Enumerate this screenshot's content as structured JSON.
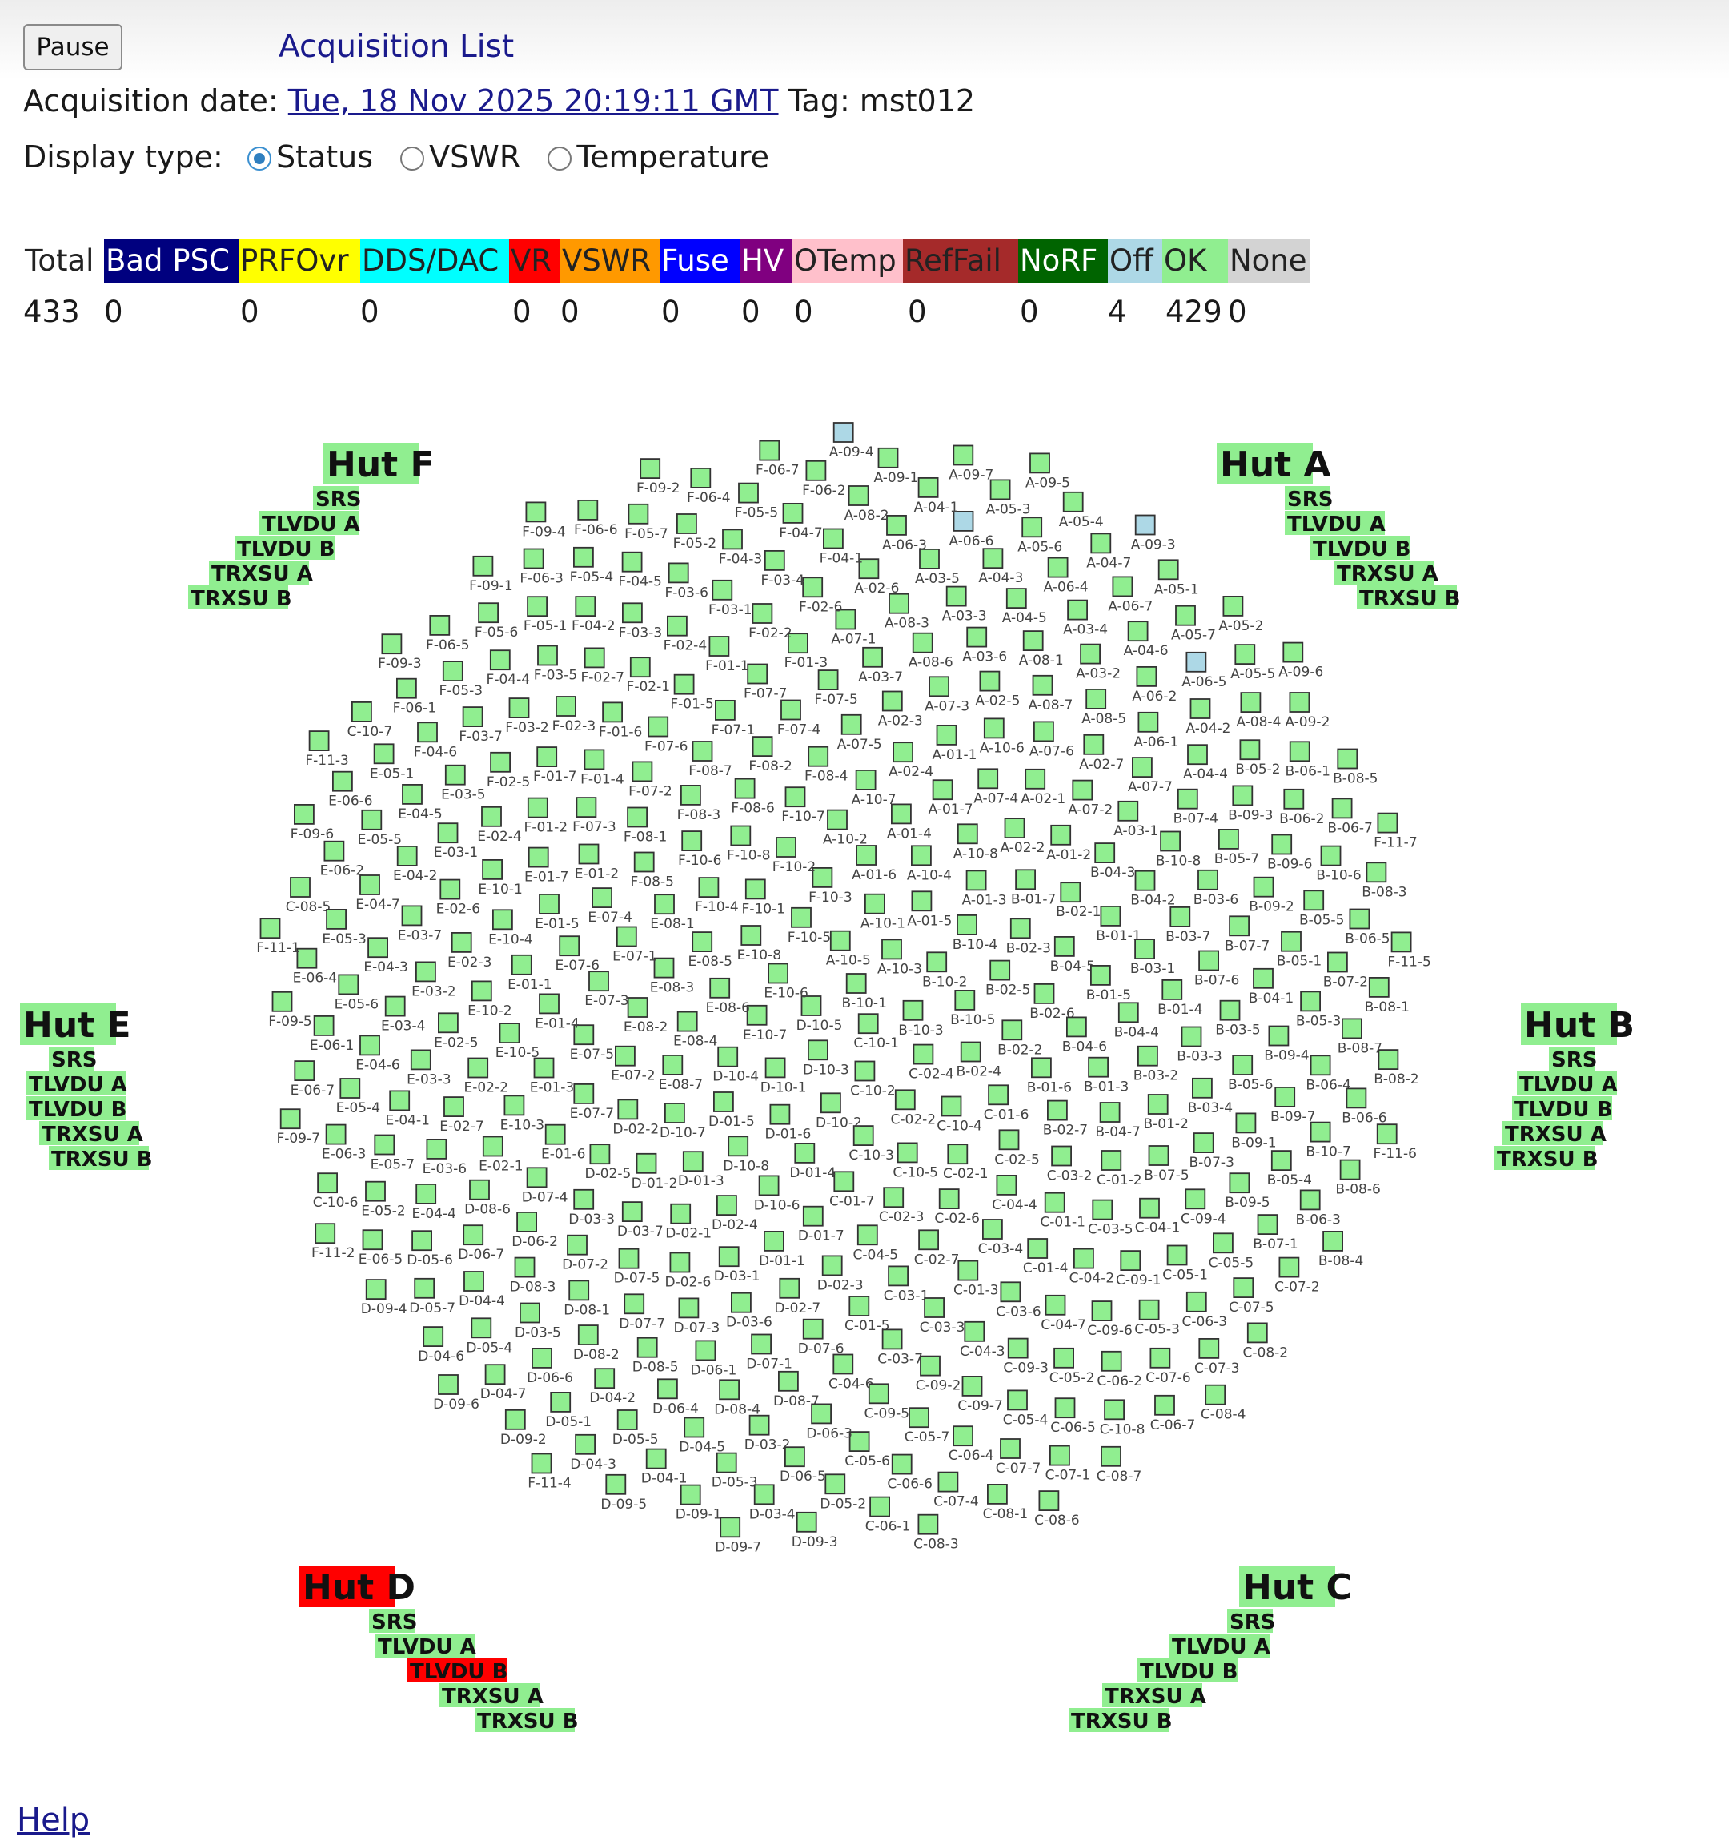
{
  "header": {
    "pause_label": "Pause",
    "acquisition_list_label": "Acquisition List",
    "acq_date_label": "Acquisition date:",
    "acq_date_value": "Tue, 18 Nov 2025 20:19:11 GMT",
    "tag_label": "Tag:",
    "tag_value": "mst012",
    "display_type_label": "Display type:",
    "display_options": [
      "Status",
      "VSWR",
      "Temperature"
    ],
    "display_selected": "Status"
  },
  "legend": {
    "total_label": "Total",
    "total_count": "433",
    "categories": [
      {
        "label": "Bad PSC",
        "count": "0",
        "bg": "#00007f",
        "fg": "#ffffff"
      },
      {
        "label": "PRFOvr",
        "count": "0",
        "bg": "#ffff00",
        "fg": "#222222"
      },
      {
        "label": "DDS/DAC",
        "count": "0",
        "bg": "#00ffff",
        "fg": "#222222"
      },
      {
        "label": "VR",
        "count": "0",
        "bg": "#ff0000",
        "fg": "#222222"
      },
      {
        "label": "VSWR",
        "count": "0",
        "bg": "#ff9900",
        "fg": "#222222"
      },
      {
        "label": "Fuse",
        "count": "0",
        "bg": "#0000ff",
        "fg": "#ffffff"
      },
      {
        "label": "HV",
        "count": "0",
        "bg": "#800080",
        "fg": "#ffffff"
      },
      {
        "label": "OTemp",
        "count": "0",
        "bg": "#ffc0cb",
        "fg": "#222222"
      },
      {
        "label": "RefFail",
        "count": "0",
        "bg": "#a52a2a",
        "fg": "#222222"
      },
      {
        "label": "NoRF",
        "count": "0",
        "bg": "#006400",
        "fg": "#ffffff"
      },
      {
        "label": "Off",
        "count": "4",
        "bg": "#add8e6",
        "fg": "#222222"
      },
      {
        "label": "OK",
        "count": "429",
        "bg": "#90ee90",
        "fg": "#222222"
      },
      {
        "label": "None",
        "count": "0",
        "bg": "#d3d3d3",
        "fg": "#222222"
      }
    ]
  },
  "huts": [
    {
      "name": "Hut F",
      "status": "ok",
      "lines": [
        "SRS",
        "TLVDU A",
        "TLVDU B",
        "TRXSU A",
        "TRXSU B"
      ],
      "failed_lines": []
    },
    {
      "name": "Hut A",
      "status": "ok",
      "lines": [
        "SRS",
        "TLVDU A",
        "TLVDU B",
        "TRXSU A",
        "TRXSU B"
      ],
      "failed_lines": []
    },
    {
      "name": "Hut E",
      "status": "ok",
      "lines": [
        "SRS",
        "TLVDU A",
        "TLVDU B",
        "TRXSU A",
        "TRXSU B"
      ],
      "failed_lines": []
    },
    {
      "name": "Hut B",
      "status": "ok",
      "lines": [
        "SRS",
        "TLVDU A",
        "TLVDU B",
        "TRXSU A",
        "TRXSU B"
      ],
      "failed_lines": []
    },
    {
      "name": "Hut D",
      "status": "fail",
      "lines": [
        "SRS",
        "TLVDU A",
        "TLVDU B",
        "TRXSU A",
        "TRXSU B"
      ],
      "failed_lines": [
        "TLVDU B"
      ]
    },
    {
      "name": "Hut C",
      "status": "ok",
      "lines": [
        "SRS",
        "TLVDU A",
        "TLVDU B",
        "TRXSU A",
        "TRXSU B"
      ],
      "failed_lines": []
    }
  ],
  "status_colors": {
    "ok": "#90ee90",
    "off": "#add8e6",
    "fail": "#ff0000"
  },
  "nodes": [
    "A-10-5",
    "A-10-3",
    "A-10-1",
    "A-01-5",
    "A-01-6",
    "A-10-4",
    "A-10-2",
    "A-01-3",
    "A-01-4",
    "A-10-8",
    "A-10-7",
    "A-01-7",
    "A-02-2",
    "A-02-4",
    "A-07-4",
    "A-07-5",
    "A-01-2",
    "A-01-1",
    "A-02-1",
    "A-02-3",
    "A-10-6",
    "A-07-2",
    "A-07-3",
    "A-07-6",
    "A-03-7",
    "A-03-1",
    "A-02-5",
    "A-02-7",
    "A-08-6",
    "A-08-7",
    "A-07-1",
    "A-07-7",
    "A-03-6",
    "A-08-5",
    "A-08-3",
    "A-08-1",
    "A-06-1",
    "A-03-3",
    "A-03-2",
    "A-02-6",
    "A-04-4",
    "A-04-5",
    "A-06-2",
    "A-03-5",
    "A-03-4",
    "A-04-2",
    "A-04-3",
    "A-04-6",
    "A-06-3",
    "A-06-4",
    "A-06-5",
    "A-06-6",
    "A-06-7",
    "A-08-2",
    "A-08-4",
    "A-05-6",
    "A-05-7",
    "A-04-1",
    "A-04-7",
    "A-05-5",
    "A-05-3",
    "A-05-1",
    "A-09-1",
    "A-09-2",
    "A-05-4",
    "A-05-2",
    "A-09-7",
    "A-09-3",
    "A-09-4",
    "A-09-6",
    "A-09-5",
    "B-10-1",
    "B-10-3",
    "B-10-2",
    "B-10-5",
    "B-10-4",
    "B-02-4",
    "B-02-5",
    "B-02-2",
    "B-02-3",
    "B-02-6",
    "B-01-7",
    "B-01-6",
    "B-04-5",
    "B-04-6",
    "B-02-1",
    "B-02-7",
    "B-01-5",
    "B-01-3",
    "B-01-1",
    "B-04-4",
    "B-04-3",
    "B-04-7",
    "B-03-1",
    "B-03-2",
    "B-04-2",
    "B-01-4",
    "B-01-2",
    "B-03-7",
    "B-03-3",
    "B-10-8",
    "B-07-5",
    "B-07-6",
    "B-03-4",
    "B-03-6",
    "B-03-5",
    "B-07-4",
    "B-07-3",
    "B-07-7",
    "B-05-6",
    "B-05-7",
    "B-04-1",
    "B-09-1",
    "B-09-2",
    "B-09-4",
    "B-09-3",
    "B-09-5",
    "B-05-1",
    "B-09-7",
    "B-09-6",
    "B-05-3",
    "B-05-2",
    "B-05-4",
    "B-05-5",
    "B-06-4",
    "B-06-2",
    "B-07-1",
    "B-07-2",
    "B-10-7",
    "B-10-6",
    "B-08-7",
    "B-06-1",
    "B-06-3",
    "B-06-5",
    "B-06-6",
    "B-06-7",
    "B-08-1",
    "B-08-6",
    "B-08-3",
    "B-08-2",
    "B-08-5",
    "B-08-4",
    "C-10-1",
    "C-10-2",
    "C-02-4",
    "C-02-2",
    "C-10-3",
    "C-10-4",
    "C-10-5",
    "C-01-6",
    "C-01-7",
    "C-02-1",
    "C-02-3",
    "C-02-5",
    "C-02-6",
    "C-04-5",
    "C-04-4",
    "C-02-7",
    "C-03-2",
    "C-03-4",
    "C-03-1",
    "C-01-1",
    "C-01-3",
    "C-01-2",
    "C-01-5",
    "C-01-4",
    "C-03-3",
    "C-03-5",
    "C-03-6",
    "C-03-7",
    "C-04-2",
    "C-04-3",
    "C-04-1",
    "C-04-6",
    "C-04-7",
    "C-09-2",
    "C-09-1",
    "C-09-3",
    "C-09-4",
    "C-09-5",
    "C-09-6",
    "C-09-7",
    "C-05-1",
    "C-05-2",
    "C-05-7",
    "C-05-3",
    "C-05-4",
    "C-05-5",
    "C-05-6",
    "C-06-2",
    "C-06-4",
    "C-06-3",
    "C-06-5",
    "C-06-6",
    "C-07-6",
    "C-07-7",
    "C-07-5",
    "C-10-8",
    "C-07-4",
    "C-07-3",
    "C-07-1",
    "C-07-2",
    "C-06-1",
    "C-06-7",
    "C-08-1",
    "C-08-2",
    "C-08-7",
    "C-08-3",
    "C-08-4",
    "C-08-6",
    "C-08-5",
    "C-10-6",
    "C-10-7",
    "D-10-5",
    "D-10-3",
    "D-10-1",
    "D-10-2",
    "D-10-4",
    "D-01-6",
    "D-01-5",
    "D-01-4",
    "D-10-8",
    "D-10-7",
    "D-10-6",
    "D-01-3",
    "D-01-7",
    "D-02-2",
    "D-02-4",
    "D-01-2",
    "D-01-1",
    "D-02-1",
    "D-02-3",
    "D-02-5",
    "D-03-1",
    "D-03-7",
    "D-02-7",
    "D-02-6",
    "D-03-3",
    "D-03-6",
    "D-07-5",
    "D-07-6",
    "D-07-4",
    "D-07-3",
    "D-07-2",
    "D-07-1",
    "D-07-7",
    "D-06-2",
    "D-06-1",
    "D-08-1",
    "D-08-7",
    "D-08-6",
    "D-08-5",
    "D-08-3",
    "D-08-4",
    "D-08-2",
    "D-06-3",
    "D-06-7",
    "D-06-4",
    "D-03-5",
    "D-03-2",
    "D-04-2",
    "D-04-4",
    "D-04-5",
    "D-06-6",
    "D-06-5",
    "D-05-6",
    "D-05-5",
    "D-05-4",
    "D-05-3",
    "D-05-1",
    "D-05-2",
    "D-05-7",
    "D-04-1",
    "D-04-7",
    "D-03-4",
    "D-04-3",
    "D-04-6",
    "D-09-1",
    "D-09-2",
    "D-09-3",
    "D-09-4",
    "D-09-5",
    "D-09-6",
    "D-09-7",
    "E-10-6",
    "E-10-7",
    "E-10-8",
    "E-08-6",
    "E-08-5",
    "E-08-4",
    "E-08-3",
    "E-08-7",
    "E-08-1",
    "E-08-2",
    "E-07-1",
    "E-07-2",
    "E-07-3",
    "E-07-4",
    "E-07-5",
    "E-07-6",
    "E-07-7",
    "E-01-2",
    "E-01-4",
    "E-01-5",
    "E-01-3",
    "E-01-1",
    "E-01-6",
    "E-01-7",
    "E-10-5",
    "E-10-4",
    "E-10-3",
    "E-10-2",
    "E-10-1",
    "E-02-2",
    "E-02-3",
    "E-02-1",
    "E-02-4",
    "E-02-5",
    "E-02-6",
    "E-02-7",
    "E-03-2",
    "E-03-1",
    "E-03-3",
    "E-03-7",
    "E-03-6",
    "E-03-5",
    "E-03-4",
    "E-04-2",
    "E-04-1",
    "E-04-3",
    "E-04-4",
    "E-04-5",
    "E-04-6",
    "E-04-7",
    "E-05-7",
    "E-05-6",
    "E-05-5",
    "E-05-4",
    "E-05-3",
    "E-05-2",
    "E-05-1",
    "E-06-1",
    "E-06-2",
    "E-06-3",
    "E-06-4",
    "E-06-5",
    "E-06-6",
    "E-06-7",
    "F-10-5",
    "F-10-3",
    "F-10-1",
    "F-10-2",
    "F-10-4",
    "F-10-8",
    "F-10-7",
    "F-10-6",
    "F-08-6",
    "F-08-5",
    "F-08-4",
    "F-08-3",
    "F-08-2",
    "F-08-1",
    "F-08-7",
    "F-07-4",
    "F-07-2",
    "F-07-1",
    "F-07-3",
    "F-07-5",
    "F-07-6",
    "F-07-7",
    "F-01-4",
    "F-01-5",
    "F-01-2",
    "F-01-3",
    "F-01-6",
    "F-01-1",
    "F-01-7",
    "F-02-1",
    "F-02-2",
    "F-02-3",
    "F-02-4",
    "F-02-5",
    "F-02-6",
    "F-02-7",
    "F-03-1",
    "F-03-2",
    "F-03-3",
    "F-03-4",
    "F-03-5",
    "F-03-6",
    "F-03-7",
    "F-04-1",
    "F-04-2",
    "F-04-3",
    "F-04-4",
    "F-04-5",
    "F-04-6",
    "F-04-7",
    "F-05-1",
    "F-05-2",
    "F-05-3",
    "F-05-4",
    "F-05-5",
    "F-05-6",
    "F-05-7",
    "F-06-1",
    "F-06-2",
    "F-06-3",
    "F-06-4",
    "F-06-5",
    "F-06-6",
    "F-06-7",
    "F-09-1",
    "F-09-2",
    "F-09-3",
    "F-09-4",
    "F-09-5",
    "F-09-6",
    "F-09-7",
    "F-11-1",
    "F-11-2",
    "F-11-3",
    "F-11-4",
    "F-11-5",
    "F-11-6",
    "F-11-7"
  ],
  "off_nodes": [
    "A-09-4",
    "A-09-3",
    "A-06-5",
    "A-06-6"
  ],
  "help_label": "Help"
}
